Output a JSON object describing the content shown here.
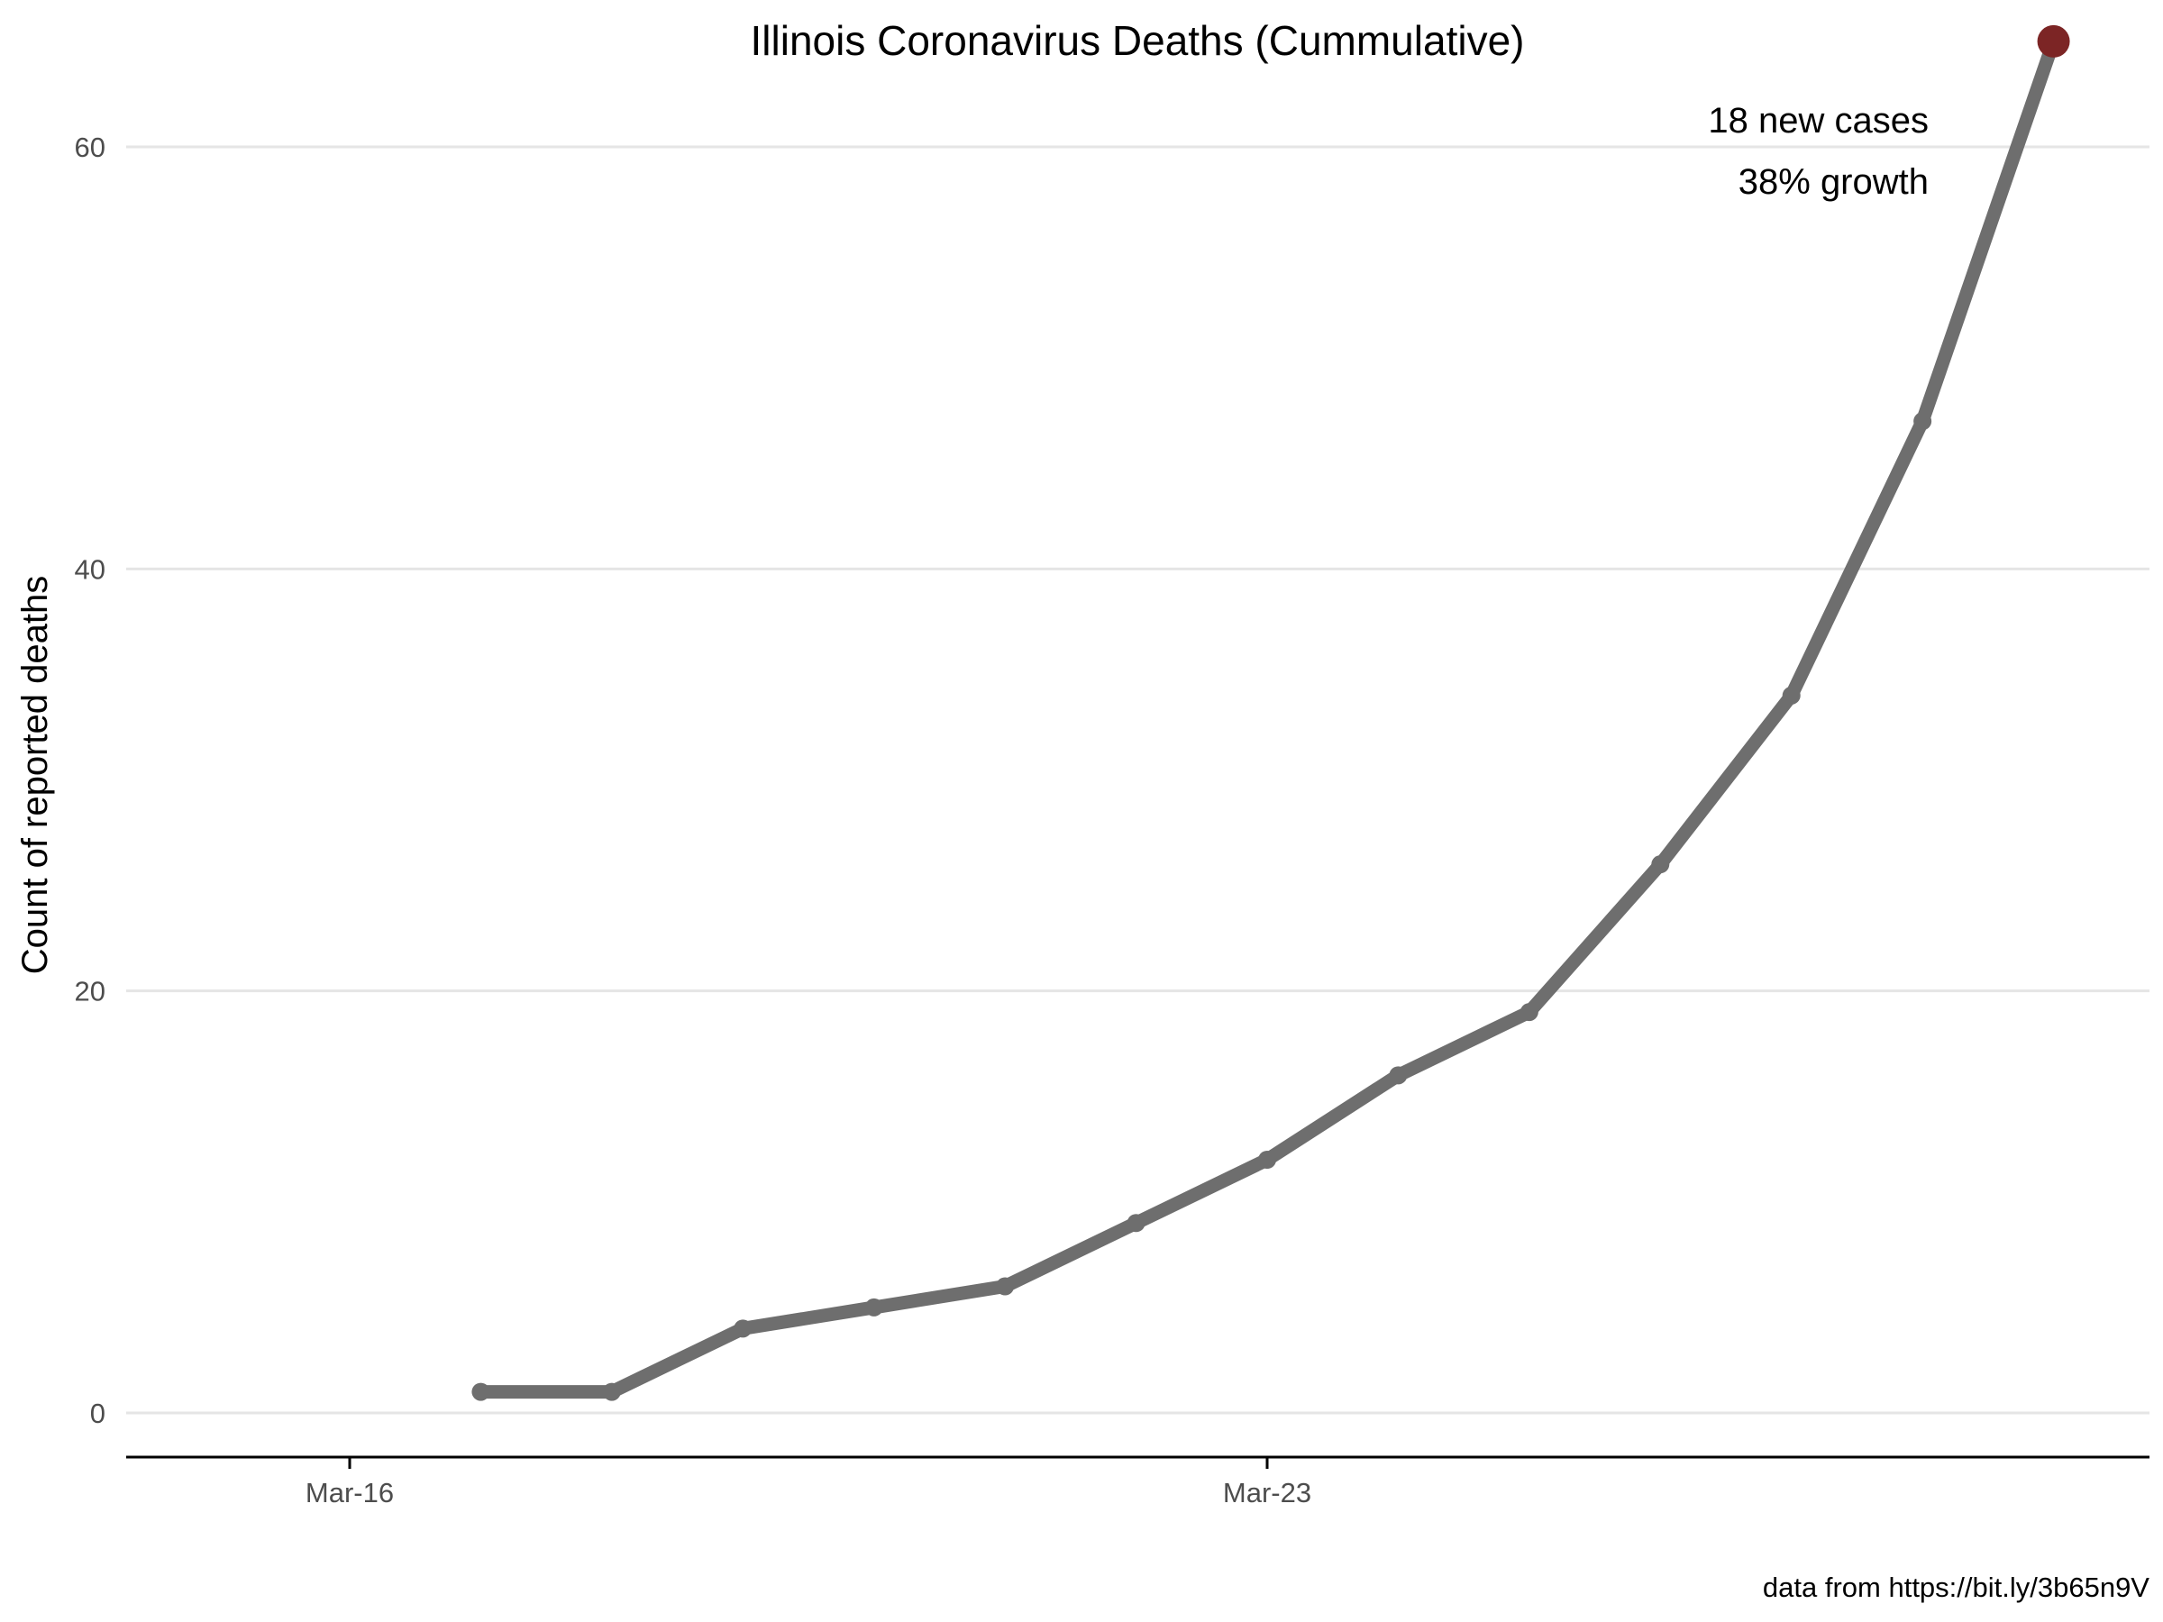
{
  "chart_data": {
    "type": "line",
    "title": "Illinois Coronavirus Deaths (Cummulative)",
    "xlabel": "",
    "ylabel": "Count of reported deaths",
    "x": [
      "Mar-17",
      "Mar-18",
      "Mar-19",
      "Mar-20",
      "Mar-21",
      "Mar-22",
      "Mar-23",
      "Mar-24",
      "Mar-25",
      "Mar-26",
      "Mar-27",
      "Mar-28",
      "Mar-29"
    ],
    "series": [
      {
        "values": [
          1,
          1,
          4,
          5,
          6,
          9,
          12,
          16,
          19,
          26,
          34,
          47,
          65
        ]
      }
    ],
    "x_ticks": [
      "Mar-16",
      "Mar-23"
    ],
    "y_ticks": [
      0,
      20,
      40,
      60
    ],
    "xlim": [
      "Mar-15",
      "Mar-30"
    ],
    "ylim": [
      0,
      65
    ],
    "grid": "horizontal major",
    "legend": "none",
    "highlight_last_point": true,
    "annotation": {
      "line1": "18 new cases",
      "line2": "38% growth"
    },
    "caption": "data from https://bit.ly/3b65n9V",
    "colors": {
      "line": "#6e6e6e",
      "highlight": "#7c2525",
      "grid": "#e5e5e5",
      "axis": "#000000",
      "tick_text": "#4d4d4d"
    }
  }
}
